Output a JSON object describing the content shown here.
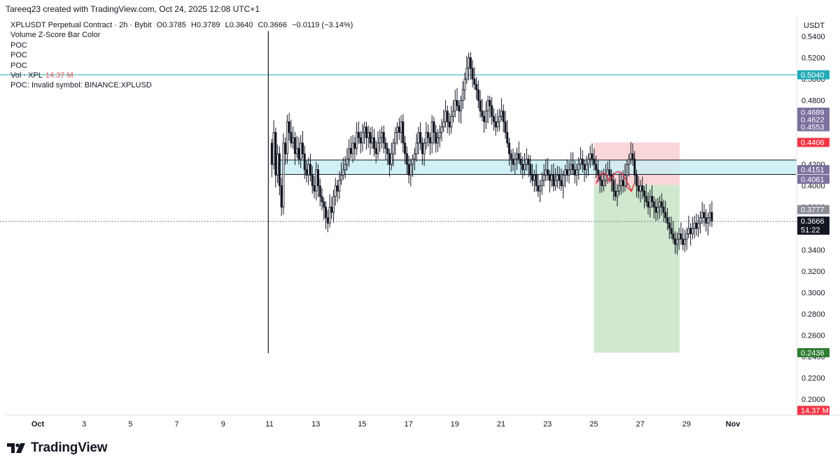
{
  "header": {
    "attribution": "Tareeq23 created with TradingView.com, Oct 24, 2025 12:08 UTC+1"
  },
  "legend": {
    "symbol_line": "XPLUSDT Perpetual Contract · 2h · Bybit",
    "ohlc": {
      "open_label": "O",
      "open": "0.3785",
      "high_label": "H",
      "high": "0.3789",
      "low_label": "L",
      "low": "0.3640",
      "close_label": "C",
      "close": "0.3666",
      "change": "−0.0119 (−3.14%)"
    },
    "indicators": [
      "Volume Z-Score Bar Color",
      "POC",
      "POC",
      "POC"
    ],
    "vol_label": "Vol · XPL",
    "vol_value": "14.37 M",
    "poc_error": "POC: Invalid symbol: BINANCE:XPLUSD"
  },
  "brand": {
    "name": "TradingView",
    "logo_icon": "tradingview-logo-icon"
  },
  "colors": {
    "candle": "#131722",
    "zone_fill": "#c9eef3",
    "zone_border": "#131722",
    "hline": "#22aab8",
    "stop_fill": "#fbd6d8",
    "target_fill": "#cfe8cf",
    "arrow": "#e8334a",
    "axis_border": "#e0e3eb"
  },
  "chart_data": {
    "type": "candlestick",
    "symbol": "XPLUSDT Perpetual Contract",
    "timeframe": "2h",
    "exchange": "Bybit",
    "currency": "USDT",
    "ylim": [
      0.185,
      0.555
    ],
    "y_ticks": [
      "0.5400",
      "0.5200",
      "0.5000",
      "0.4800",
      "0.4600",
      "0.4400",
      "0.4200",
      "0.4000",
      "0.3800",
      "0.3600",
      "0.3400",
      "0.3200",
      "0.3000",
      "0.2800",
      "0.2600",
      "0.2400",
      "0.2200",
      "0.2000"
    ],
    "x_ticks": [
      "Oct",
      "3",
      "5",
      "7",
      "9",
      "11",
      "13",
      "15",
      "17",
      "19",
      "21",
      "23",
      "25",
      "27",
      "29",
      "Nov"
    ],
    "price_tags": [
      {
        "label": "0.5040",
        "value": 0.504,
        "color": "#22aab8"
      },
      {
        "label": "0.4689",
        "value": 0.4689,
        "color": "#7c6f9e"
      },
      {
        "label": "0.4622",
        "value": 0.4622,
        "color": "#7c6f9e"
      },
      {
        "label": "0.4553",
        "value": 0.4553,
        "color": "#7c6f9e"
      },
      {
        "label": "0.4406",
        "value": 0.4406,
        "color": "#f23645"
      },
      {
        "label": "0.4151",
        "value": 0.4151,
        "color": "#7c6f9e"
      },
      {
        "label": "0.4061",
        "value": 0.4061,
        "color": "#7c6f9e"
      },
      {
        "label": "0.3777",
        "value": 0.3777,
        "color": "#8b8e97"
      },
      {
        "label": "0.3666",
        "value": 0.3666,
        "color": "#131722",
        "sub": "51:22"
      },
      {
        "label": "0.2436",
        "value": 0.2436,
        "color": "#2e7d32"
      },
      {
        "label": "14.37 M",
        "value": 0.1895,
        "color": "#f23645"
      }
    ],
    "current_price": 0.3666,
    "horizontal_line": 0.504,
    "zone": {
      "from_date": 11.3,
      "to_date": 35,
      "top": 0.4241,
      "bottom": 0.4106
    },
    "position": {
      "from_date": 25,
      "to_date": 28.7,
      "entry": 0.4006,
      "stop": 0.4406,
      "target": 0.2436
    },
    "first_bar_day": 10.95,
    "bar_spacing_days": 0.0833,
    "closes": [
      0.42,
      0.45,
      0.41,
      0.43,
      0.4,
      0.38,
      0.44,
      0.43,
      0.46,
      0.45,
      0.44,
      0.445,
      0.43,
      0.435,
      0.425,
      0.44,
      0.43,
      0.415,
      0.41,
      0.42,
      0.41,
      0.4,
      0.395,
      0.415,
      0.4,
      0.39,
      0.385,
      0.38,
      0.37,
      0.365,
      0.38,
      0.375,
      0.39,
      0.4,
      0.395,
      0.405,
      0.41,
      0.415,
      0.42,
      0.425,
      0.435,
      0.43,
      0.44,
      0.435,
      0.45,
      0.445,
      0.44,
      0.45,
      0.455,
      0.445,
      0.45,
      0.44,
      0.445,
      0.435,
      0.43,
      0.44,
      0.445,
      0.45,
      0.44,
      0.435,
      0.43,
      0.42,
      0.43,
      0.44,
      0.45,
      0.455,
      0.45,
      0.46,
      0.44,
      0.43,
      0.42,
      0.41,
      0.42,
      0.425,
      0.43,
      0.44,
      0.45,
      0.44,
      0.43,
      0.44,
      0.45,
      0.445,
      0.44,
      0.46,
      0.45,
      0.44,
      0.445,
      0.45,
      0.455,
      0.46,
      0.47,
      0.46,
      0.455,
      0.465,
      0.47,
      0.48,
      0.475,
      0.47,
      0.48,
      0.49,
      0.5,
      0.51,
      0.52,
      0.51,
      0.5,
      0.495,
      0.49,
      0.48,
      0.47,
      0.465,
      0.46,
      0.47,
      0.48,
      0.475,
      0.465,
      0.46,
      0.455,
      0.46,
      0.465,
      0.47,
      0.46,
      0.45,
      0.44,
      0.43,
      0.425,
      0.42,
      0.425,
      0.43,
      0.425,
      0.42,
      0.415,
      0.42,
      0.425,
      0.42,
      0.41,
      0.405,
      0.41,
      0.4,
      0.395,
      0.4,
      0.405,
      0.41,
      0.415,
      0.41,
      0.405,
      0.41,
      0.4,
      0.405,
      0.41,
      0.405,
      0.4,
      0.41,
      0.415,
      0.41,
      0.415,
      0.42,
      0.415,
      0.41,
      0.415,
      0.42,
      0.425,
      0.42,
      0.415,
      0.42,
      0.425,
      0.43,
      0.425,
      0.42,
      0.415,
      0.41,
      0.405,
      0.4,
      0.405,
      0.41,
      0.415,
      0.41,
      0.405,
      0.395,
      0.39,
      0.395,
      0.4,
      0.405,
      0.4,
      0.41,
      0.42,
      0.425,
      0.43,
      0.425,
      0.41,
      0.4,
      0.395,
      0.4,
      0.395,
      0.39,
      0.385,
      0.38,
      0.39,
      0.385,
      0.38,
      0.375,
      0.38,
      0.385,
      0.38,
      0.375,
      0.37,
      0.365,
      0.36,
      0.355,
      0.35,
      0.345,
      0.35,
      0.355,
      0.35,
      0.345,
      0.35,
      0.355,
      0.36,
      0.355,
      0.36,
      0.365,
      0.36,
      0.365,
      0.37,
      0.375,
      0.37,
      0.365,
      0.37,
      0.375,
      0.3666
    ]
  }
}
